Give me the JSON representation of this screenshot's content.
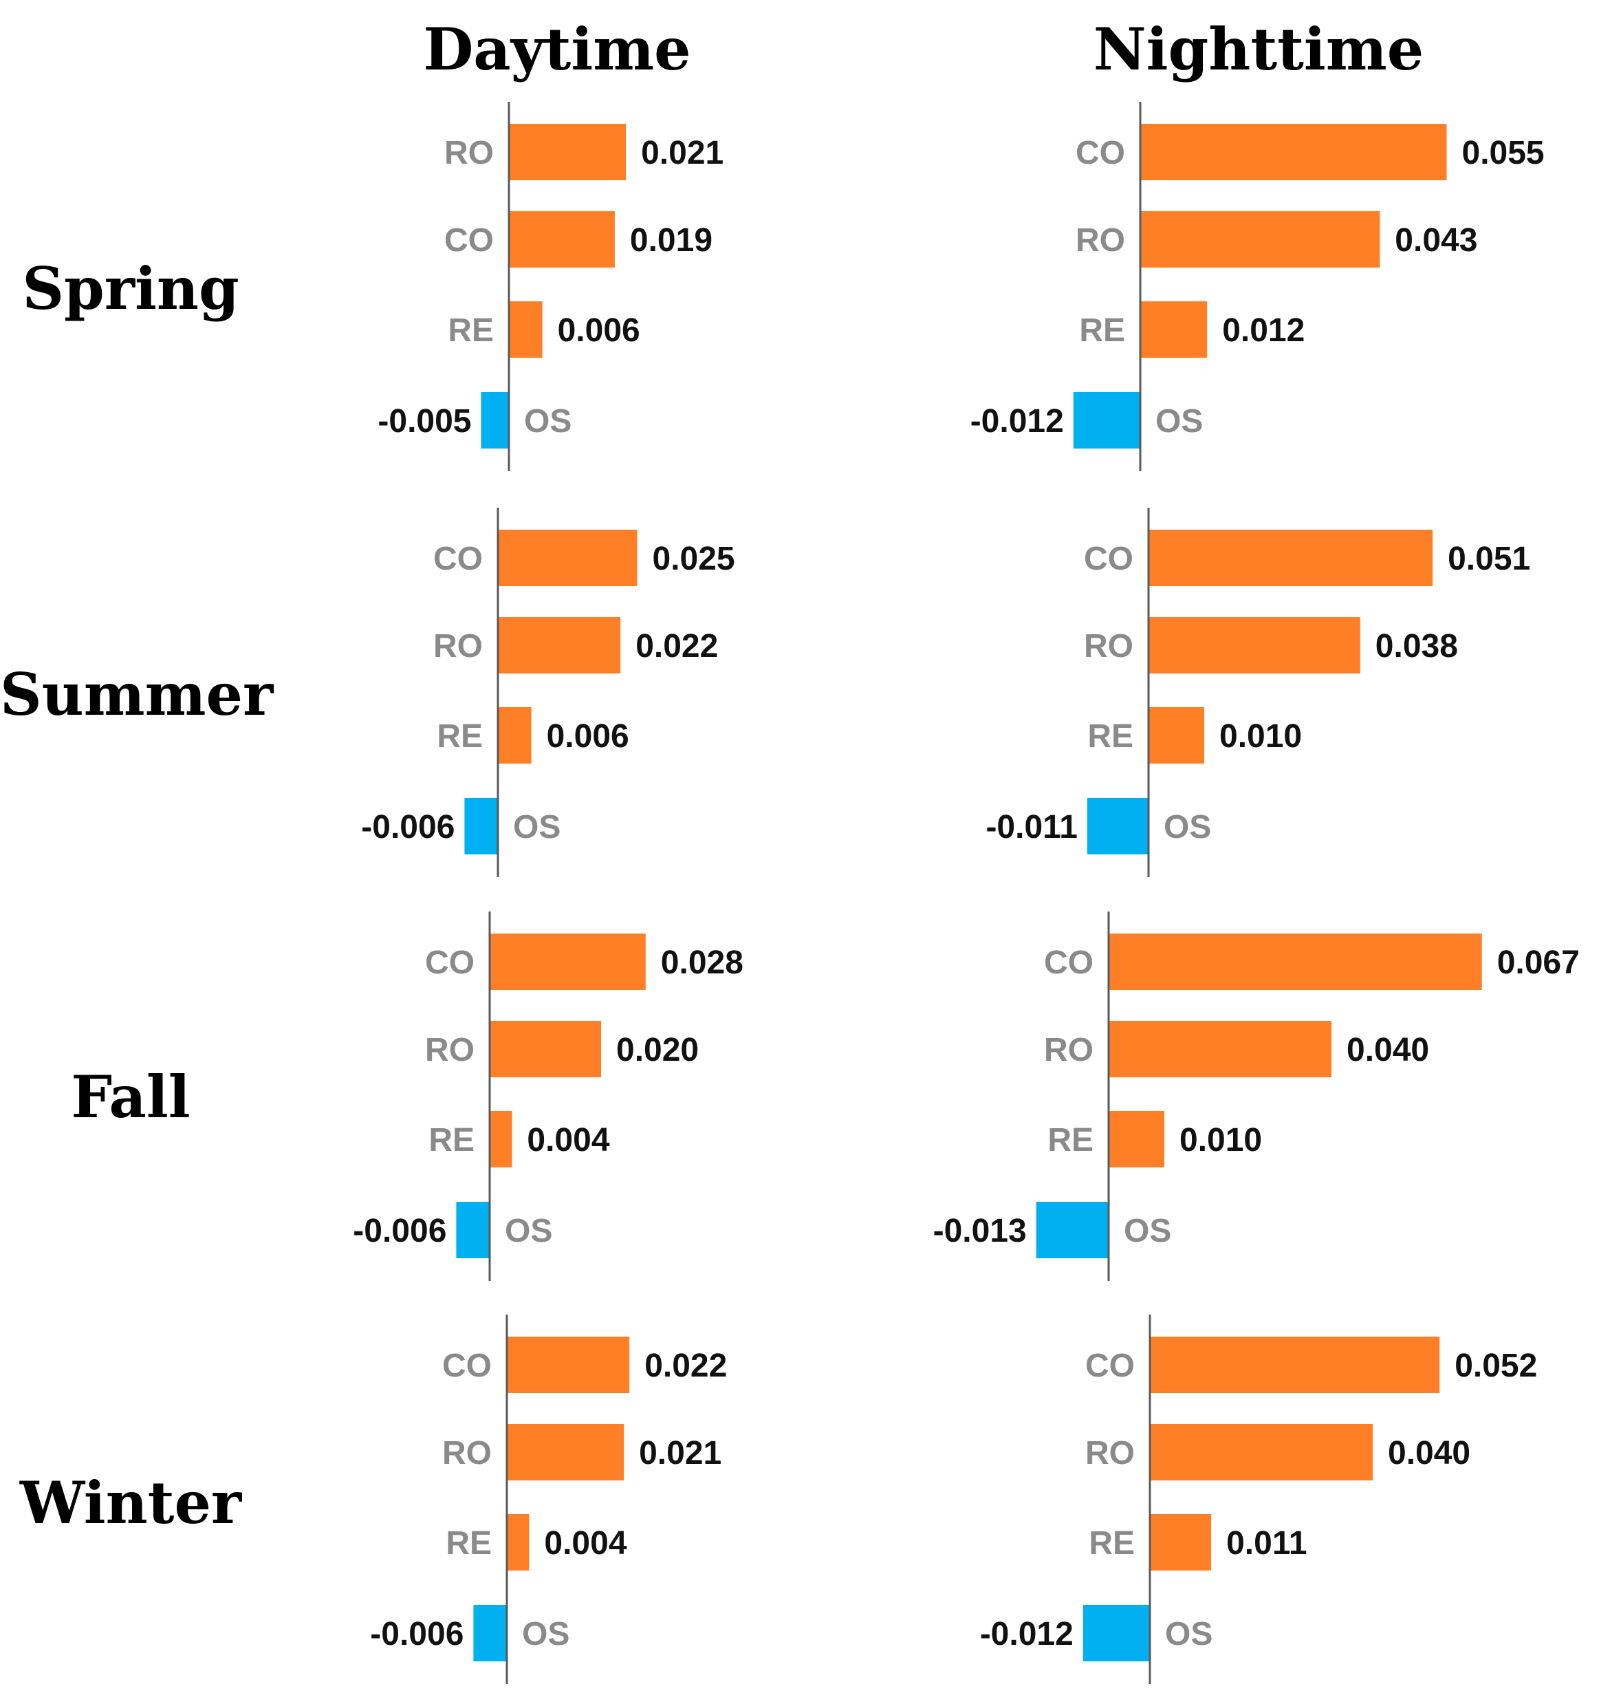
{
  "columns": [
    "Daytime",
    "Nighttime"
  ],
  "rows": [
    "Spring",
    "Summer",
    "Fall",
    "Winter"
  ],
  "colors": {
    "positive": "#FF7F27",
    "negative": "#00B0F0",
    "axis": "#595959"
  },
  "chart_data": [
    {
      "type": "bar",
      "orientation": "horizontal",
      "season": "Spring",
      "period": "Daytime",
      "categories": [
        "RO",
        "CO",
        "RE",
        "OS"
      ],
      "values": [
        0.021,
        0.019,
        0.006,
        -0.005
      ],
      "labels": [
        "0.021",
        "0.019",
        "0.006",
        "-0.005"
      ]
    },
    {
      "type": "bar",
      "orientation": "horizontal",
      "season": "Spring",
      "period": "Nighttime",
      "categories": [
        "CO",
        "RO",
        "RE",
        "OS"
      ],
      "values": [
        0.055,
        0.043,
        0.012,
        -0.012
      ],
      "labels": [
        "0.055",
        "0.043",
        "0.012",
        "-0.012"
      ]
    },
    {
      "type": "bar",
      "orientation": "horizontal",
      "season": "Summer",
      "period": "Daytime",
      "categories": [
        "CO",
        "RO",
        "RE",
        "OS"
      ],
      "values": [
        0.025,
        0.022,
        0.006,
        -0.006
      ],
      "labels": [
        "0.025",
        "0.022",
        "0.006",
        "-0.006"
      ]
    },
    {
      "type": "bar",
      "orientation": "horizontal",
      "season": "Summer",
      "period": "Nighttime",
      "categories": [
        "CO",
        "RO",
        "RE",
        "OS"
      ],
      "values": [
        0.051,
        0.038,
        0.01,
        -0.011
      ],
      "labels": [
        "0.051",
        "0.038",
        "0.010",
        "-0.011"
      ]
    },
    {
      "type": "bar",
      "orientation": "horizontal",
      "season": "Fall",
      "period": "Daytime",
      "categories": [
        "CO",
        "RO",
        "RE",
        "OS"
      ],
      "values": [
        0.028,
        0.02,
        0.004,
        -0.006
      ],
      "labels": [
        "0.028",
        "0.020",
        "0.004",
        "-0.006"
      ]
    },
    {
      "type": "bar",
      "orientation": "horizontal",
      "season": "Fall",
      "period": "Nighttime",
      "categories": [
        "CO",
        "RO",
        "RE",
        "OS"
      ],
      "values": [
        0.067,
        0.04,
        0.01,
        -0.013
      ],
      "labels": [
        "0.067",
        "0.040",
        "0.010",
        "-0.013"
      ]
    },
    {
      "type": "bar",
      "orientation": "horizontal",
      "season": "Winter",
      "period": "Daytime",
      "categories": [
        "CO",
        "RO",
        "RE",
        "OS"
      ],
      "values": [
        0.022,
        0.021,
        0.004,
        -0.006
      ],
      "labels": [
        "0.022",
        "0.021",
        "0.004",
        "-0.006"
      ]
    },
    {
      "type": "bar",
      "orientation": "horizontal",
      "season": "Winter",
      "period": "Nighttime",
      "categories": [
        "CO",
        "RO",
        "RE",
        "OS"
      ],
      "values": [
        0.052,
        0.04,
        0.011,
        -0.012
      ],
      "labels": [
        "0.052",
        "0.040",
        "0.011",
        "-0.012"
      ]
    }
  ]
}
